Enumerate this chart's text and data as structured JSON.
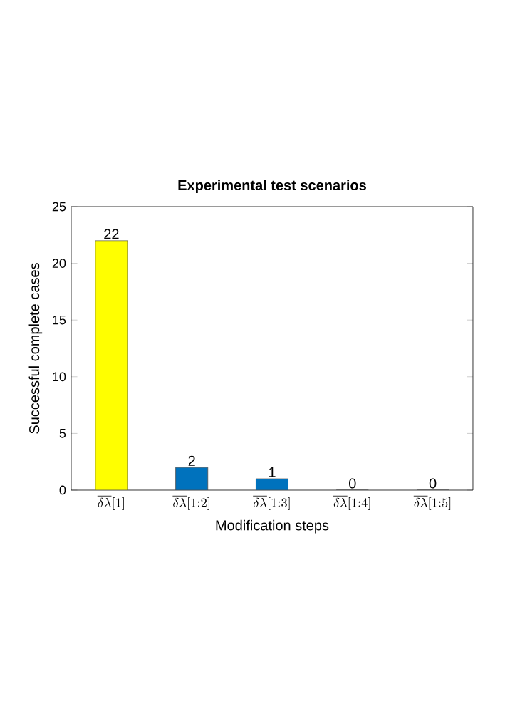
{
  "chart_data": {
    "type": "bar",
    "title": "Experimental test scenarios",
    "xlabel": "Modification steps",
    "ylabel": "Successful complete cases",
    "categories": [
      "\\overline{\\delta\\lambda}[1]",
      "\\overline{\\delta\\lambda}[1{:}2]",
      "\\overline{\\delta\\lambda}[1{:}3]",
      "\\overline{\\delta\\lambda}[1{:}4]",
      "\\overline{\\delta\\lambda}[1{:}5]"
    ],
    "values": [
      22,
      2,
      1,
      0,
      0
    ],
    "colors": [
      "#ffff00",
      "#0072bd",
      "#0072bd",
      "#0072bd",
      "#0072bd"
    ],
    "ylim": [
      0,
      25
    ],
    "yticks": [
      0,
      5,
      10,
      15,
      20,
      25
    ],
    "data_labels": true,
    "grid": false
  }
}
